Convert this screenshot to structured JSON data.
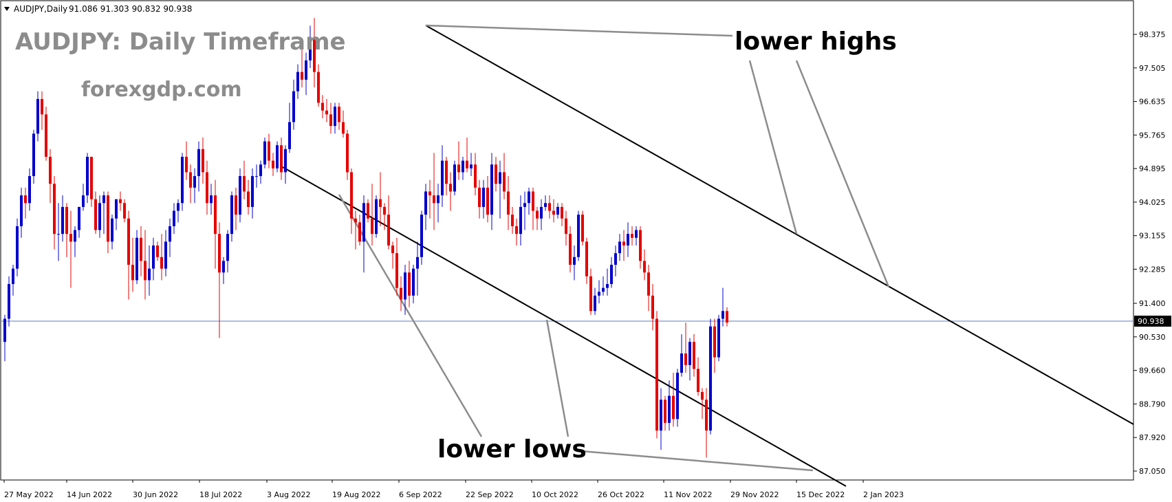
{
  "header": {
    "symbol": "AUDJPY,Daily",
    "ohlc": "91.086 91.303 90.832 90.938"
  },
  "chart_data": {
    "type": "candlestick",
    "title": "AUDJPY: Daily Timeframe",
    "subtitle": "forexgdp.com",
    "ylim": [
      86.75,
      99.5
    ],
    "y_ticks": [
      "98.375",
      "97.505",
      "96.635",
      "95.765",
      "94.895",
      "94.025",
      "93.155",
      "92.285",
      "91.400",
      "90.530",
      "89.660",
      "88.790",
      "87.920",
      "87.050"
    ],
    "x_labels": [
      "27 May 2022",
      "14 Jun 2022",
      "30 Jun 2022",
      "18 Jul 2022",
      "3 Aug 2022",
      "19 Aug 2022",
      "6 Sep 2022",
      "22 Sep 2022",
      "10 Oct 2022",
      "26 Oct 2022",
      "11 Nov 2022",
      "29 Nov 2022",
      "15 Dec 2022",
      "2 Jan 2023"
    ],
    "current_price": "90.938",
    "annotations": [
      "lower highs",
      "lower lows"
    ],
    "colors": {
      "bull": "#0000cc",
      "bear": "#e60000",
      "price_line": "#5b7ec6",
      "price_label_bg": "#000000"
    },
    "trendlines": [
      {
        "from": [
          "6 Sep 2022",
          98.75
        ],
        "to": [
          "2 Jan 2023+",
          88.1
        ]
      },
      {
        "from": [
          "3 Aug 2022",
          95.1
        ],
        "to": [
          "15 Dec 2022+",
          86.75
        ]
      }
    ],
    "candles": [
      [
        90.4,
        91.1,
        89.9,
        91.0
      ],
      [
        91.0,
        92.1,
        90.8,
        91.9
      ],
      [
        91.9,
        92.4,
        91.6,
        92.3
      ],
      [
        92.3,
        93.6,
        92.1,
        93.4
      ],
      [
        93.4,
        94.4,
        93.1,
        94.2
      ],
      [
        94.2,
        94.4,
        93.6,
        94.0
      ],
      [
        94.0,
        94.9,
        93.8,
        94.7
      ],
      [
        94.7,
        95.9,
        94.5,
        95.8
      ],
      [
        95.8,
        96.9,
        95.6,
        96.7
      ],
      [
        96.7,
        96.9,
        95.9,
        96.3
      ],
      [
        96.3,
        96.5,
        95.1,
        95.2
      ],
      [
        95.2,
        95.4,
        94.0,
        94.5
      ],
      [
        94.5,
        94.7,
        92.8,
        93.2
      ],
      [
        93.2,
        94.0,
        92.5,
        93.2
      ],
      [
        93.2,
        94.2,
        93.0,
        93.9
      ],
      [
        93.9,
        94.0,
        92.6,
        93.2
      ],
      [
        93.2,
        93.8,
        91.8,
        93.0
      ],
      [
        93.0,
        93.4,
        92.6,
        93.3
      ],
      [
        93.3,
        93.9,
        93.1,
        93.9
      ],
      [
        93.9,
        94.5,
        93.8,
        94.2
      ],
      [
        94.2,
        95.3,
        94.0,
        95.2
      ],
      [
        95.2,
        95.2,
        93.9,
        94.1
      ],
      [
        94.1,
        94.3,
        93.2,
        93.3
      ],
      [
        93.3,
        94.2,
        93.1,
        94.0
      ],
      [
        94.0,
        94.3,
        93.2,
        94.2
      ],
      [
        94.2,
        94.3,
        92.7,
        93.0
      ],
      [
        93.0,
        93.7,
        92.8,
        93.6
      ],
      [
        93.6,
        94.1,
        93.3,
        94.1
      ],
      [
        94.1,
        94.3,
        93.8,
        94.0
      ],
      [
        94.0,
        94.1,
        93.5,
        93.6
      ],
      [
        93.6,
        93.8,
        91.5,
        92.4
      ],
      [
        92.4,
        93.1,
        91.7,
        92.0
      ],
      [
        92.0,
        93.3,
        91.9,
        93.1
      ],
      [
        93.1,
        93.4,
        92.1,
        92.5
      ],
      [
        92.5,
        93.3,
        91.5,
        92.0
      ],
      [
        92.0,
        92.9,
        91.6,
        92.3
      ],
      [
        92.3,
        93.1,
        92.0,
        92.9
      ],
      [
        92.9,
        93.0,
        92.5,
        92.6
      ],
      [
        92.6,
        93.2,
        92.0,
        92.3
      ],
      [
        92.3,
        93.3,
        92.1,
        93.0
      ],
      [
        93.0,
        93.6,
        92.6,
        93.4
      ],
      [
        93.4,
        94.0,
        93.2,
        93.8
      ],
      [
        93.8,
        94.1,
        93.5,
        94.0
      ],
      [
        94.0,
        95.3,
        93.8,
        95.2
      ],
      [
        95.2,
        95.6,
        94.6,
        94.8
      ],
      [
        94.8,
        95.0,
        94.0,
        94.4
      ],
      [
        94.4,
        94.9,
        94.0,
        94.7
      ],
      [
        94.7,
        95.6,
        94.3,
        95.4
      ],
      [
        95.4,
        95.7,
        94.5,
        94.8
      ],
      [
        94.8,
        95.1,
        93.7,
        94.0
      ],
      [
        94.0,
        94.5,
        93.7,
        94.2
      ],
      [
        94.2,
        94.6,
        92.3,
        93.2
      ],
      [
        93.2,
        93.5,
        90.5,
        92.2
      ],
      [
        92.2,
        92.6,
        91.9,
        92.5
      ],
      [
        92.5,
        93.3,
        92.2,
        93.2
      ],
      [
        93.2,
        94.3,
        93.0,
        94.2
      ],
      [
        94.2,
        94.4,
        93.3,
        93.7
      ],
      [
        93.7,
        94.9,
        93.5,
        94.7
      ],
      [
        94.7,
        95.1,
        94.1,
        94.3
      ],
      [
        94.3,
        94.6,
        93.7,
        93.9
      ],
      [
        93.9,
        94.9,
        93.6,
        94.7
      ],
      [
        94.7,
        95.0,
        94.4,
        94.7
      ],
      [
        94.7,
        95.1,
        94.5,
        95.0
      ],
      [
        95.0,
        95.7,
        94.9,
        95.6
      ],
      [
        95.6,
        95.8,
        94.9,
        95.1
      ],
      [
        95.1,
        95.3,
        94.7,
        94.9
      ],
      [
        94.9,
        95.6,
        94.8,
        95.5
      ],
      [
        95.5,
        95.7,
        94.6,
        94.8
      ],
      [
        94.8,
        95.5,
        94.5,
        95.4
      ],
      [
        95.4,
        96.6,
        95.3,
        96.1
      ],
      [
        96.1,
        97.2,
        95.9,
        96.9
      ],
      [
        96.9,
        97.6,
        96.7,
        97.4
      ],
      [
        97.4,
        98.0,
        97.0,
        97.2
      ],
      [
        97.2,
        97.9,
        96.8,
        97.7
      ],
      [
        97.7,
        98.6,
        97.5,
        98.3
      ],
      [
        98.3,
        98.8,
        97.0,
        97.4
      ],
      [
        97.4,
        97.6,
        96.5,
        96.6
      ],
      [
        96.6,
        96.8,
        96.2,
        96.4
      ],
      [
        96.4,
        96.7,
        96.1,
        96.3
      ],
      [
        96.3,
        96.6,
        95.8,
        96.0
      ],
      [
        96.0,
        96.6,
        95.8,
        96.5
      ],
      [
        96.5,
        96.6,
        95.9,
        96.1
      ],
      [
        96.1,
        96.4,
        95.7,
        95.8
      ],
      [
        95.8,
        95.9,
        94.6,
        94.8
      ],
      [
        94.8,
        94.9,
        93.2,
        93.6
      ],
      [
        93.6,
        93.8,
        92.8,
        93.5
      ],
      [
        93.5,
        93.7,
        92.9,
        93.0
      ],
      [
        93.0,
        94.2,
        92.2,
        94.0
      ],
      [
        94.0,
        94.1,
        93.5,
        93.6
      ],
      [
        93.6,
        94.5,
        92.9,
        93.2
      ],
      [
        93.2,
        94.2,
        93.1,
        94.1
      ],
      [
        94.1,
        94.8,
        93.4,
        93.9
      ],
      [
        93.9,
        94.0,
        93.3,
        93.7
      ],
      [
        93.7,
        94.2,
        92.8,
        92.9
      ],
      [
        92.9,
        93.0,
        92.3,
        92.7
      ],
      [
        92.7,
        93.1,
        91.6,
        91.8
      ],
      [
        91.8,
        92.1,
        91.2,
        91.5
      ],
      [
        91.5,
        92.4,
        91.1,
        92.2
      ],
      [
        92.2,
        92.5,
        91.3,
        91.6
      ],
      [
        91.6,
        92.4,
        91.4,
        92.3
      ],
      [
        92.3,
        93.0,
        91.6,
        92.6
      ],
      [
        92.6,
        93.8,
        92.4,
        93.7
      ],
      [
        93.7,
        94.5,
        93.3,
        94.3
      ],
      [
        94.3,
        94.6,
        93.6,
        94.2
      ],
      [
        94.2,
        95.3,
        93.3,
        94.0
      ],
      [
        94.0,
        94.5,
        93.5,
        94.2
      ],
      [
        94.2,
        95.5,
        93.9,
        95.1
      ],
      [
        95.1,
        95.2,
        94.2,
        94.5
      ],
      [
        94.5,
        94.8,
        93.8,
        94.3
      ],
      [
        94.3,
        95.1,
        94.2,
        95.0
      ],
      [
        95.0,
        95.6,
        94.6,
        94.8
      ],
      [
        94.8,
        95.2,
        94.6,
        95.1
      ],
      [
        95.1,
        95.7,
        94.8,
        94.9
      ],
      [
        94.9,
        95.3,
        94.7,
        95.0
      ],
      [
        95.0,
        95.3,
        94.2,
        94.4
      ],
      [
        94.4,
        94.6,
        93.6,
        93.9
      ],
      [
        93.9,
        94.6,
        93.6,
        94.4
      ],
      [
        94.4,
        94.7,
        93.5,
        93.7
      ],
      [
        93.7,
        95.3,
        93.3,
        95.0
      ],
      [
        95.0,
        95.2,
        94.3,
        94.5
      ],
      [
        94.5,
        95.1,
        93.6,
        94.8
      ],
      [
        94.8,
        95.3,
        94.1,
        94.3
      ],
      [
        94.3,
        94.7,
        93.3,
        93.7
      ],
      [
        93.7,
        93.9,
        93.2,
        93.4
      ],
      [
        93.4,
        93.6,
        92.9,
        93.2
      ],
      [
        93.2,
        94.2,
        92.9,
        93.9
      ],
      [
        93.9,
        94.3,
        93.3,
        94.0
      ],
      [
        94.0,
        94.4,
        93.7,
        94.3
      ],
      [
        94.3,
        94.4,
        93.3,
        93.8
      ],
      [
        93.8,
        93.9,
        93.3,
        93.6
      ],
      [
        93.6,
        94.1,
        93.3,
        93.9
      ],
      [
        93.9,
        94.2,
        93.8,
        94.0
      ],
      [
        94.0,
        94.2,
        93.6,
        93.8
      ],
      [
        93.8,
        94.1,
        93.5,
        93.7
      ],
      [
        93.7,
        94.0,
        93.6,
        93.9
      ],
      [
        93.9,
        94.0,
        93.4,
        93.6
      ],
      [
        93.6,
        93.8,
        92.9,
        93.2
      ],
      [
        93.2,
        93.4,
        92.2,
        92.4
      ],
      [
        92.4,
        92.9,
        92.0,
        92.6
      ],
      [
        92.6,
        93.8,
        92.5,
        93.7
      ],
      [
        93.7,
        93.8,
        92.9,
        93.0
      ],
      [
        93.0,
        93.1,
        91.9,
        92.1
      ],
      [
        92.1,
        92.3,
        91.1,
        91.2
      ],
      [
        91.2,
        91.8,
        91.1,
        91.6
      ],
      [
        91.6,
        92.0,
        91.4,
        91.7
      ],
      [
        91.7,
        92.1,
        91.6,
        91.8
      ],
      [
        91.8,
        92.3,
        91.6,
        91.9
      ],
      [
        91.9,
        92.6,
        91.8,
        92.4
      ],
      [
        92.4,
        92.9,
        92.1,
        92.7
      ],
      [
        92.7,
        93.2,
        92.5,
        93.0
      ],
      [
        93.0,
        93.3,
        92.5,
        92.9
      ],
      [
        92.9,
        93.5,
        92.6,
        93.2
      ],
      [
        93.2,
        93.4,
        92.9,
        93.1
      ],
      [
        93.1,
        93.4,
        92.9,
        93.3
      ],
      [
        93.3,
        93.4,
        92.3,
        92.5
      ],
      [
        92.5,
        92.8,
        92.0,
        92.2
      ],
      [
        92.2,
        92.4,
        91.2,
        91.6
      ],
      [
        91.6,
        91.9,
        90.7,
        91.0
      ],
      [
        91.0,
        91.2,
        87.9,
        88.1
      ],
      [
        88.1,
        89.2,
        87.6,
        88.9
      ],
      [
        88.9,
        89.0,
        88.1,
        88.3
      ],
      [
        88.3,
        89.4,
        88.1,
        89.0
      ],
      [
        89.0,
        89.6,
        88.2,
        88.4
      ],
      [
        88.4,
        89.7,
        88.2,
        89.6
      ],
      [
        89.6,
        90.6,
        89.5,
        90.1
      ],
      [
        90.1,
        90.9,
        89.6,
        89.8
      ],
      [
        89.8,
        90.5,
        89.4,
        90.4
      ],
      [
        90.4,
        90.6,
        89.5,
        89.7
      ],
      [
        89.7,
        90.0,
        89.0,
        89.1
      ],
      [
        89.1,
        89.2,
        88.4,
        88.9
      ],
      [
        88.9,
        89.2,
        87.4,
        88.1
      ],
      [
        88.1,
        91.0,
        88.0,
        90.8
      ],
      [
        90.8,
        91.0,
        89.6,
        90.0
      ],
      [
        90.0,
        91.1,
        89.9,
        91.0
      ],
      [
        91.0,
        91.8,
        90.8,
        91.2
      ],
      [
        91.2,
        91.3,
        90.8,
        90.9
      ]
    ]
  }
}
